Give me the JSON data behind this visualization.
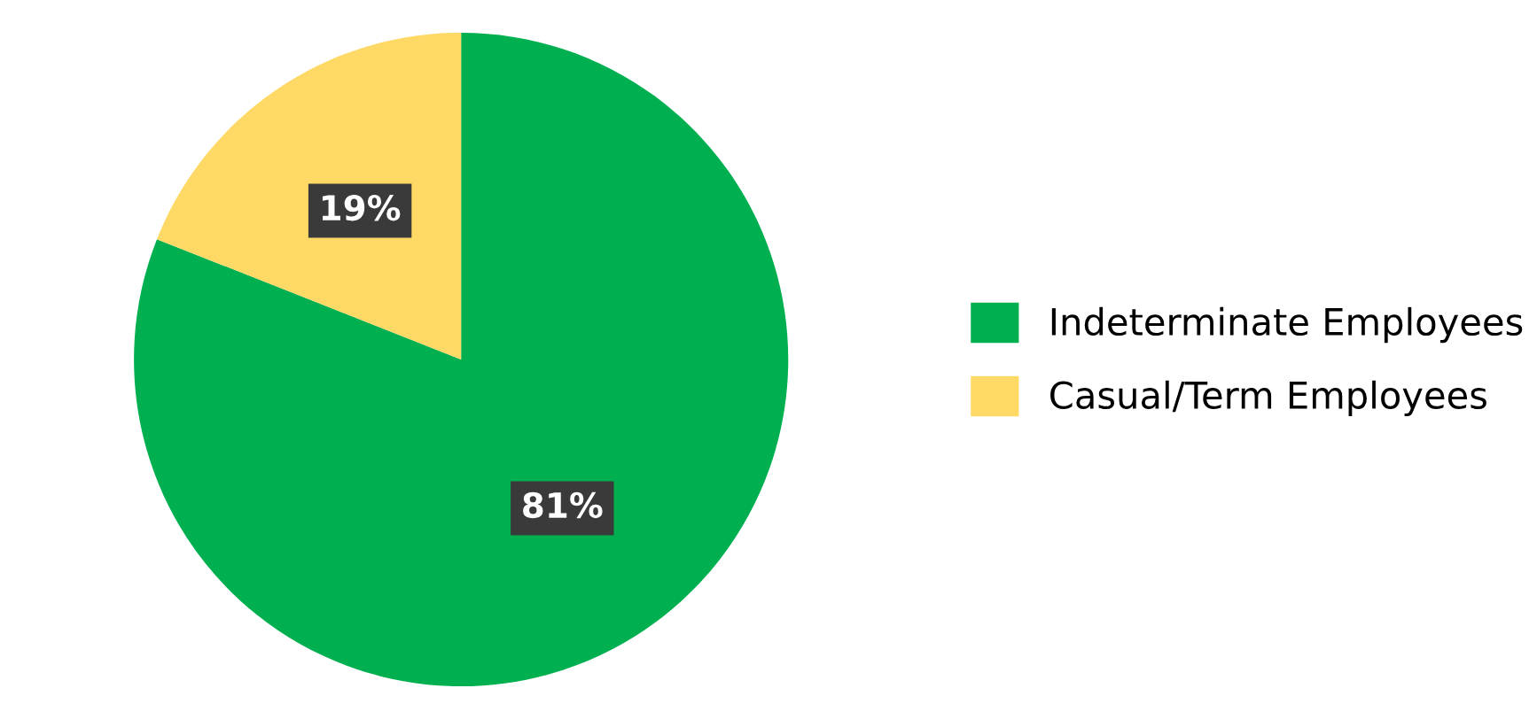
{
  "chart_data": {
    "type": "pie",
    "categories": [
      "Indeterminate Employees",
      "Casual/Term Employees"
    ],
    "values": [
      81,
      19
    ],
    "colors": [
      "#00b050",
      "#ffd966"
    ],
    "value_labels": [
      "81%",
      "19%"
    ],
    "legend": "right"
  }
}
